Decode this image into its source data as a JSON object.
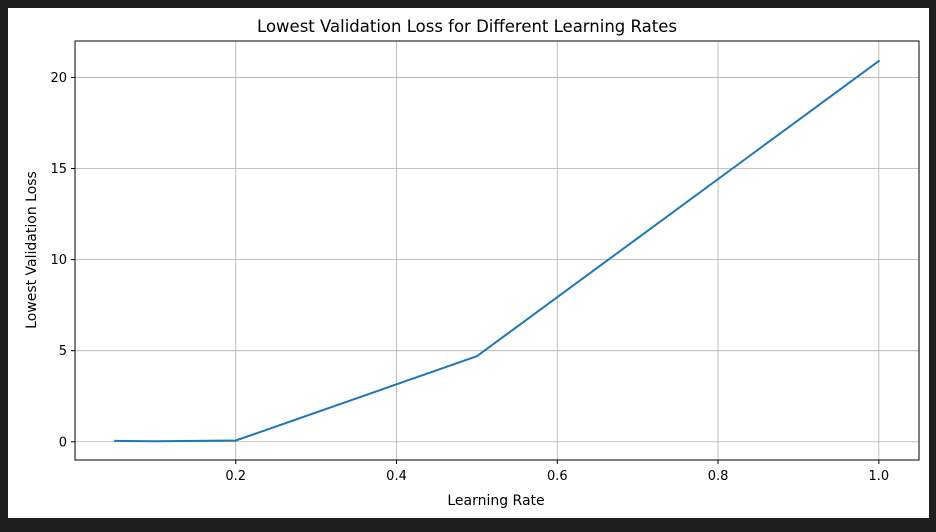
{
  "chart_data": {
    "type": "line",
    "title": "Lowest Validation Loss for Different Learning Rates",
    "xlabel": "Learning Rate",
    "ylabel": "Lowest Validation Loss",
    "xlim": [
      0.0,
      1.05
    ],
    "ylim": [
      -1.0,
      22.0
    ],
    "grid": true,
    "xticks": [
      0.2,
      0.4,
      0.6,
      0.8,
      1.0
    ],
    "xtick_labels": [
      "0.2",
      "0.4",
      "0.6",
      "0.8",
      "1.0"
    ],
    "yticks": [
      0,
      5,
      10,
      15,
      20
    ],
    "ytick_labels": [
      "0",
      "5",
      "10",
      "15",
      "20"
    ],
    "series": [
      {
        "color": "#1f77b4",
        "x": [
          0.05,
          0.1,
          0.2,
          0.5,
          1.0
        ],
        "y": [
          0.05,
          0.03,
          0.07,
          4.7,
          20.9
        ]
      }
    ]
  }
}
